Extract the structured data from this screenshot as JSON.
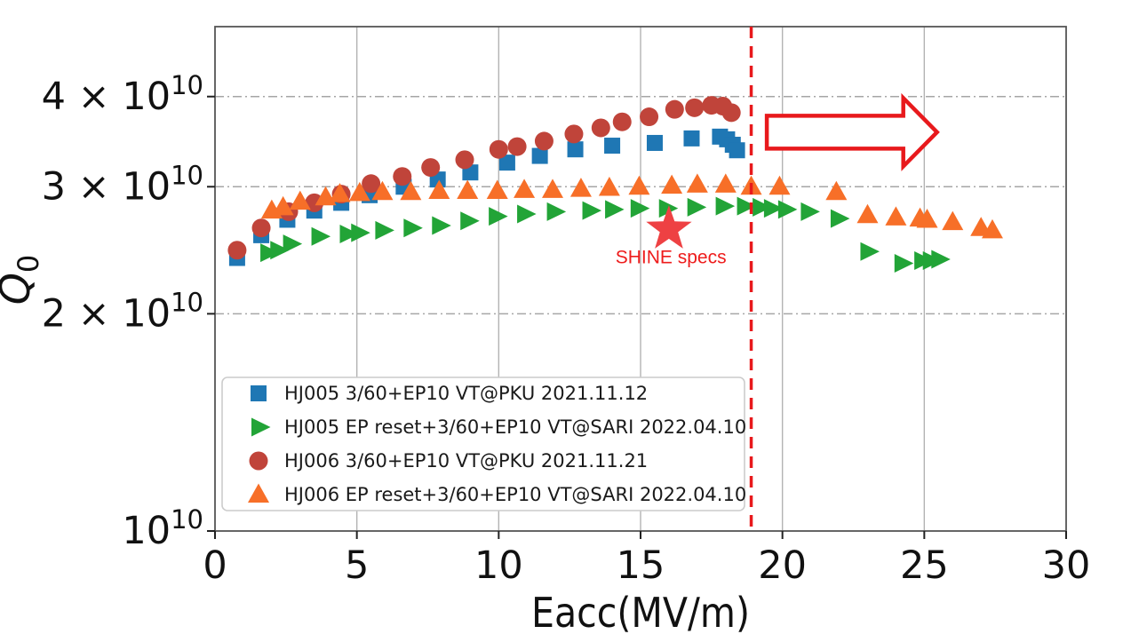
{
  "figure": {
    "background": "#ffffff"
  },
  "chart_data": {
    "type": "scatter",
    "title": "",
    "xlabel": "Eacc(MV/m)",
    "ylabel_main": "Q",
    "ylabel_sub": "0",
    "y_unit_note": "Q0 values given in units of 1e10, log-scale axis",
    "xlim": [
      0,
      30
    ],
    "qlim_1e10": [
      1,
      5
    ],
    "y_scale": "log",
    "grid": true,
    "x_ticks": [
      0,
      5,
      10,
      15,
      20,
      25,
      30
    ],
    "x_gridlines": [
      5,
      10,
      15,
      20,
      25
    ],
    "y_gridlines_1e10": [
      2,
      3,
      4
    ],
    "y_ticks": [
      {
        "q": 1,
        "base": "10",
        "exp": "10"
      },
      {
        "q": 2,
        "base": "2 × 10",
        "exp": "10"
      },
      {
        "q": 3,
        "base": "3 × 10",
        "exp": "10"
      },
      {
        "q": 4,
        "base": "4 × 10",
        "exp": "10"
      }
    ],
    "colors": {
      "vertical_grid": "#b3b3b3",
      "horizontal_grid": "#a6a6a6",
      "spine": "#555555",
      "tick": "#222222",
      "accent_red": "#e8191c"
    },
    "legend_position": "lower-left",
    "series": [
      {
        "name": "HJ005 3/60+EP10 VT@PKU 2021.11.12",
        "marker": "square",
        "color": "#1f77b4",
        "x": [
          0.78,
          1.63,
          2.55,
          3.5,
          4.45,
          5.45,
          6.65,
          7.85,
          9.0,
          10.3,
          11.45,
          12.7,
          14.0,
          15.5,
          16.8,
          17.8,
          18.05,
          18.25,
          18.4
        ],
        "q_1e10": [
          2.39,
          2.57,
          2.7,
          2.78,
          2.85,
          2.92,
          3.0,
          3.07,
          3.14,
          3.24,
          3.31,
          3.38,
          3.42,
          3.45,
          3.5,
          3.52,
          3.49,
          3.43,
          3.37
        ]
      },
      {
        "name": "HJ005 EP reset+3/60+EP10 VT@SARI 2022.04.10",
        "marker": "triangle-right",
        "color": "#22a437",
        "x": [
          1.85,
          2.2,
          2.65,
          3.65,
          4.65,
          5.05,
          5.9,
          6.9,
          7.9,
          8.9,
          9.9,
          10.9,
          11.95,
          13.2,
          14.0,
          14.9,
          15.9,
          16.9,
          17.9,
          18.65,
          19.2,
          19.6,
          20.1,
          20.9,
          21.95,
          23.0,
          24.2,
          24.9,
          25.2,
          25.5
        ],
        "q_1e10": [
          2.43,
          2.45,
          2.5,
          2.56,
          2.58,
          2.59,
          2.61,
          2.63,
          2.65,
          2.69,
          2.73,
          2.75,
          2.77,
          2.78,
          2.79,
          2.8,
          2.8,
          2.81,
          2.82,
          2.82,
          2.81,
          2.8,
          2.79,
          2.77,
          2.71,
          2.44,
          2.35,
          2.37,
          2.37,
          2.38
        ]
      },
      {
        "name": "HJ006 3/60+EP10 VT@PKU 2021.11.21",
        "marker": "circle",
        "color": "#c0443a",
        "x": [
          0.78,
          1.63,
          2.6,
          3.5,
          4.45,
          5.5,
          6.6,
          7.6,
          8.8,
          10.0,
          10.65,
          11.6,
          12.65,
          13.6,
          14.35,
          15.3,
          16.2,
          16.9,
          17.5,
          17.9,
          18.2
        ],
        "q_1e10": [
          2.45,
          2.63,
          2.77,
          2.85,
          2.93,
          3.03,
          3.1,
          3.19,
          3.27,
          3.38,
          3.41,
          3.47,
          3.55,
          3.62,
          3.69,
          3.75,
          3.84,
          3.86,
          3.89,
          3.88,
          3.8
        ]
      },
      {
        "name": "HJ006 EP reset+3/60+EP10 VT@SARI 2022.04.10",
        "marker": "triangle-up",
        "color": "#f76f28",
        "x": [
          2.0,
          2.4,
          3.0,
          3.9,
          4.4,
          5.1,
          5.9,
          6.9,
          7.9,
          8.9,
          9.95,
          10.9,
          11.9,
          12.9,
          13.9,
          14.95,
          16.1,
          17.0,
          18.0,
          18.9,
          19.9,
          21.9,
          23.0,
          24.0,
          24.85,
          25.1,
          26.0,
          27.0,
          27.4
        ],
        "q_1e10": [
          2.78,
          2.81,
          2.86,
          2.9,
          2.93,
          2.94,
          2.95,
          2.95,
          2.96,
          2.96,
          2.96,
          2.97,
          2.97,
          2.98,
          2.99,
          3.0,
          3.01,
          3.02,
          3.02,
          3.0,
          3.0,
          2.95,
          2.74,
          2.72,
          2.71,
          2.7,
          2.68,
          2.63,
          2.61
        ]
      }
    ],
    "annotations": {
      "star": {
        "x": 16.0,
        "q_1e10": 2.62,
        "color": "#ee4143",
        "label": "SHINE specs",
        "label_color": "#ee1c1c",
        "label_x": 16.07,
        "label_q_1e10": 2.35
      },
      "vline": {
        "x": 18.9,
        "color": "#e8191c",
        "style": "dashed"
      },
      "arrow": {
        "x_start": 19.45,
        "x_end": 25.45,
        "q_1e10": 3.57,
        "stroke": "#e8191c",
        "fill": "#ffffff"
      }
    }
  }
}
